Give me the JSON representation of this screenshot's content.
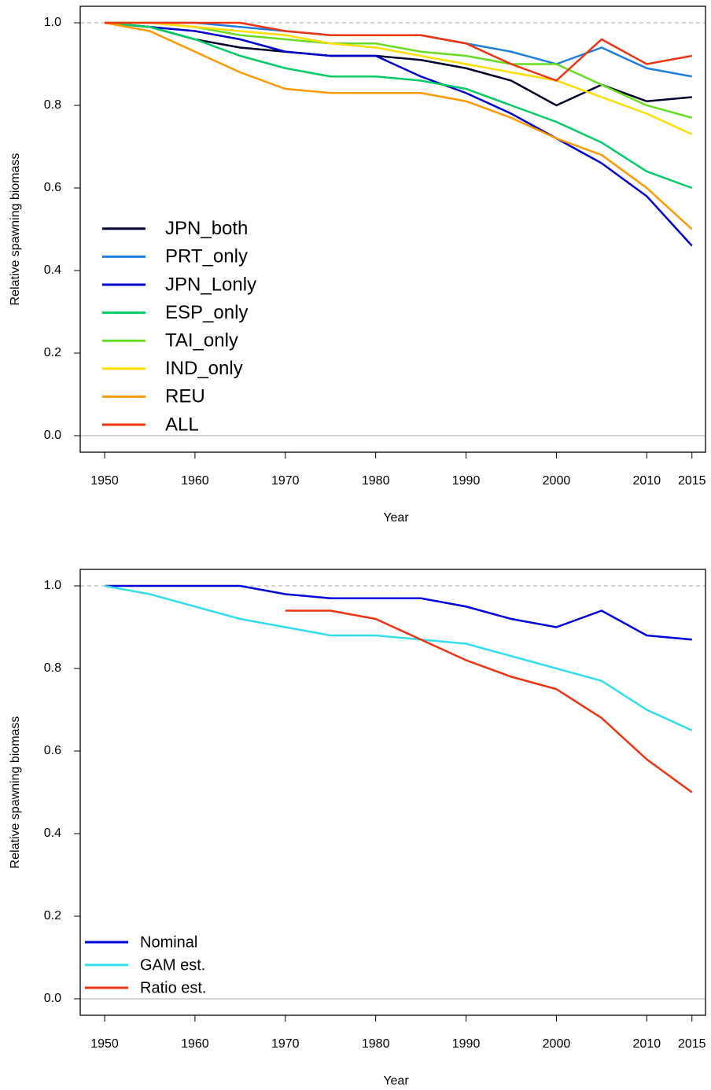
{
  "chart_data": [
    {
      "type": "line",
      "x_label": "Year",
      "y_label": "Relative spawning biomass",
      "x": [
        1950,
        1955,
        1960,
        1965,
        1970,
        1975,
        1980,
        1985,
        1990,
        1995,
        2000,
        2005,
        2010,
        2015
      ],
      "series": [
        {
          "name": "JPN_both",
          "color": "#00002e",
          "values": [
            1,
            0.99,
            0.96,
            0.94,
            0.93,
            0.92,
            0.92,
            0.91,
            0.89,
            0.86,
            0.8,
            0.85,
            0.81,
            0.82
          ]
        },
        {
          "name": "PRT_only",
          "color": "#1f7fe0",
          "values": [
            1,
            1,
            1,
            0.99,
            0.98,
            0.97,
            0.97,
            0.97,
            0.95,
            0.93,
            0.9,
            0.94,
            0.89,
            0.87
          ]
        },
        {
          "name": "JPN_Lonly",
          "color": "#0000cc",
          "values": [
            1,
            0.99,
            0.98,
            0.96,
            0.93,
            0.92,
            0.92,
            0.87,
            0.83,
            0.78,
            0.72,
            0.66,
            0.58,
            0.46
          ]
        },
        {
          "name": "ESP_only",
          "color": "#00cc66",
          "values": [
            1,
            0.99,
            0.96,
            0.92,
            0.89,
            0.87,
            0.87,
            0.86,
            0.84,
            0.8,
            0.76,
            0.71,
            0.64,
            0.6
          ]
        },
        {
          "name": "TAI_only",
          "color": "#66dd22",
          "values": [
            1,
            1,
            0.99,
            0.97,
            0.96,
            0.95,
            0.95,
            0.93,
            0.92,
            0.9,
            0.9,
            0.85,
            0.8,
            0.77
          ]
        },
        {
          "name": "IND_only",
          "color": "#ffdd00",
          "values": [
            1,
            1,
            0.99,
            0.98,
            0.97,
            0.95,
            0.94,
            0.92,
            0.9,
            0.88,
            0.86,
            0.82,
            0.78,
            0.73
          ]
        },
        {
          "name": "REU",
          "color": "#ff9900",
          "values": [
            1,
            0.98,
            0.93,
            0.88,
            0.84,
            0.83,
            0.83,
            0.83,
            0.81,
            0.77,
            0.72,
            0.68,
            0.6,
            0.5
          ]
        },
        {
          "name": "ALL",
          "color": "#ee3311",
          "values": [
            1,
            1,
            1,
            1,
            0.98,
            0.97,
            0.97,
            0.97,
            0.95,
            0.9,
            0.86,
            0.96,
            0.9,
            0.92
          ]
        }
      ],
      "xlim": [
        1947.3,
        2016.5
      ],
      "ylim": [
        -0.04,
        1.04
      ],
      "xticks": [
        1950,
        1960,
        1970,
        1980,
        1990,
        2000,
        2010,
        2015
      ],
      "yticks": [
        {
          "value": 0,
          "label": "0.0"
        },
        {
          "value": 0.2,
          "label": "0.2"
        },
        {
          "value": 0.4,
          "label": "0.4"
        },
        {
          "value": 0.6,
          "label": "0.6"
        },
        {
          "value": 0.8,
          "label": "0.8"
        },
        {
          "value": 1,
          "label": "1.0"
        }
      ],
      "reference_lines": [
        1,
        0
      ],
      "legend": "bottom-left"
    },
    {
      "type": "line",
      "x_label": "Year",
      "y_label": "Relative spawning biomass",
      "x": [
        1950,
        1955,
        1960,
        1965,
        1970,
        1975,
        1980,
        1985,
        1990,
        1995,
        2000,
        2005,
        2010,
        2015
      ],
      "series": [
        {
          "name": "Nominal",
          "color": "#0000dd",
          "values": [
            1,
            1,
            1,
            1,
            0.98,
            0.97,
            0.97,
            0.97,
            0.95,
            0.92,
            0.9,
            0.94,
            0.88,
            0.87
          ]
        },
        {
          "name": "GAM est.",
          "color": "#33ddee",
          "values": [
            1,
            0.98,
            0.95,
            0.92,
            0.9,
            0.88,
            0.88,
            0.87,
            0.86,
            0.83,
            0.8,
            0.77,
            0.7,
            0.65
          ]
        },
        {
          "name": "Ratio est.",
          "color": "#ee3311",
          "values": [
            null,
            null,
            null,
            null,
            0.94,
            0.94,
            0.92,
            0.87,
            0.82,
            0.78,
            0.75,
            0.68,
            0.58,
            0.5
          ]
        }
      ],
      "xlim": [
        1947.3,
        2016.5
      ],
      "ylim": [
        -0.04,
        1.04
      ],
      "xticks": [
        1950,
        1960,
        1970,
        1980,
        1990,
        2000,
        2010,
        2015
      ],
      "yticks": [
        {
          "value": 0,
          "label": "0.0"
        },
        {
          "value": 0.2,
          "label": "0.2"
        },
        {
          "value": 0.4,
          "label": "0.4"
        },
        {
          "value": 0.6,
          "label": "0.6"
        },
        {
          "value": 0.8,
          "label": "0.8"
        },
        {
          "value": 1,
          "label": "1.0"
        }
      ],
      "reference_lines": [
        1,
        0
      ],
      "legend": "bottom-left"
    }
  ]
}
